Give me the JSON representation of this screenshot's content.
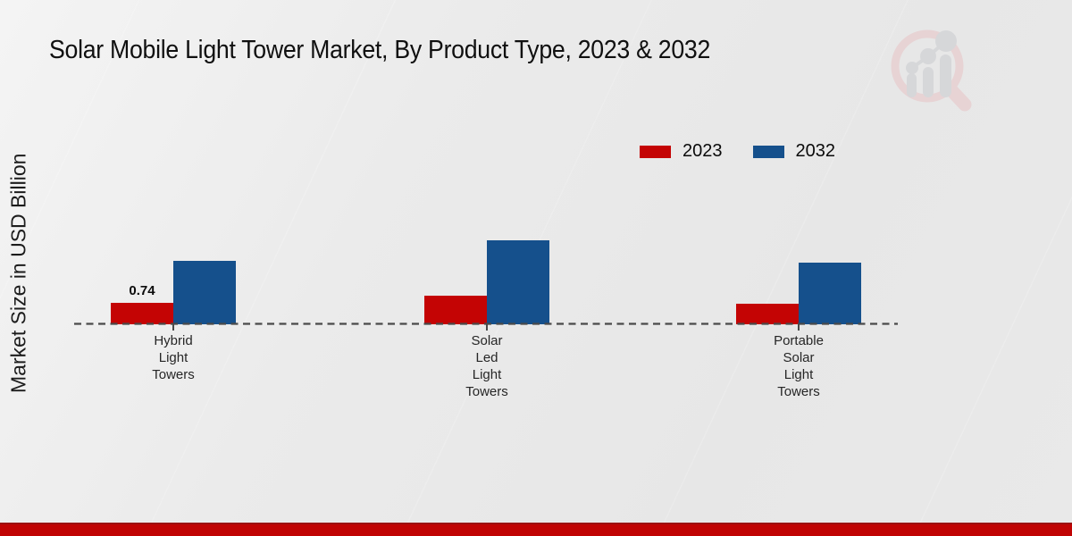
{
  "title": "Solar Mobile Light Tower Market, By Product Type, 2023 & 2032",
  "watermark_icon": "magnifier-bar-chart-logo",
  "footer_bar_color": "#c00404",
  "baseline_color": "#4a4a4a",
  "chart_data": {
    "type": "bar",
    "title": "Solar Mobile Light Tower Market, By Product Type, 2023 & 2032",
    "xlabel": "",
    "ylabel": "Market Size in USD Billion",
    "categories": [
      "Hybrid Light Towers",
      "Solar Led Light Towers",
      "Portable Solar Light Towers"
    ],
    "category_label_lines": [
      [
        "Hybrid",
        "Light",
        "Towers"
      ],
      [
        "Solar",
        "Led",
        "Light",
        "Towers"
      ],
      [
        "Portable",
        "Solar",
        "Light",
        "Towers"
      ]
    ],
    "series": [
      {
        "name": "2023",
        "color": "#c40404",
        "values": [
          0.74,
          1.0,
          0.71
        ]
      },
      {
        "name": "2032",
        "color": "#15508c",
        "values": [
          2.2,
          2.9,
          2.12
        ]
      }
    ],
    "annotations": [
      {
        "series": "2023",
        "category": "Hybrid Light Towers",
        "text": "0.74"
      }
    ],
    "y_axis_visible": false,
    "grid": false,
    "baseline_style": "dashed",
    "legend_position": "top-right"
  }
}
